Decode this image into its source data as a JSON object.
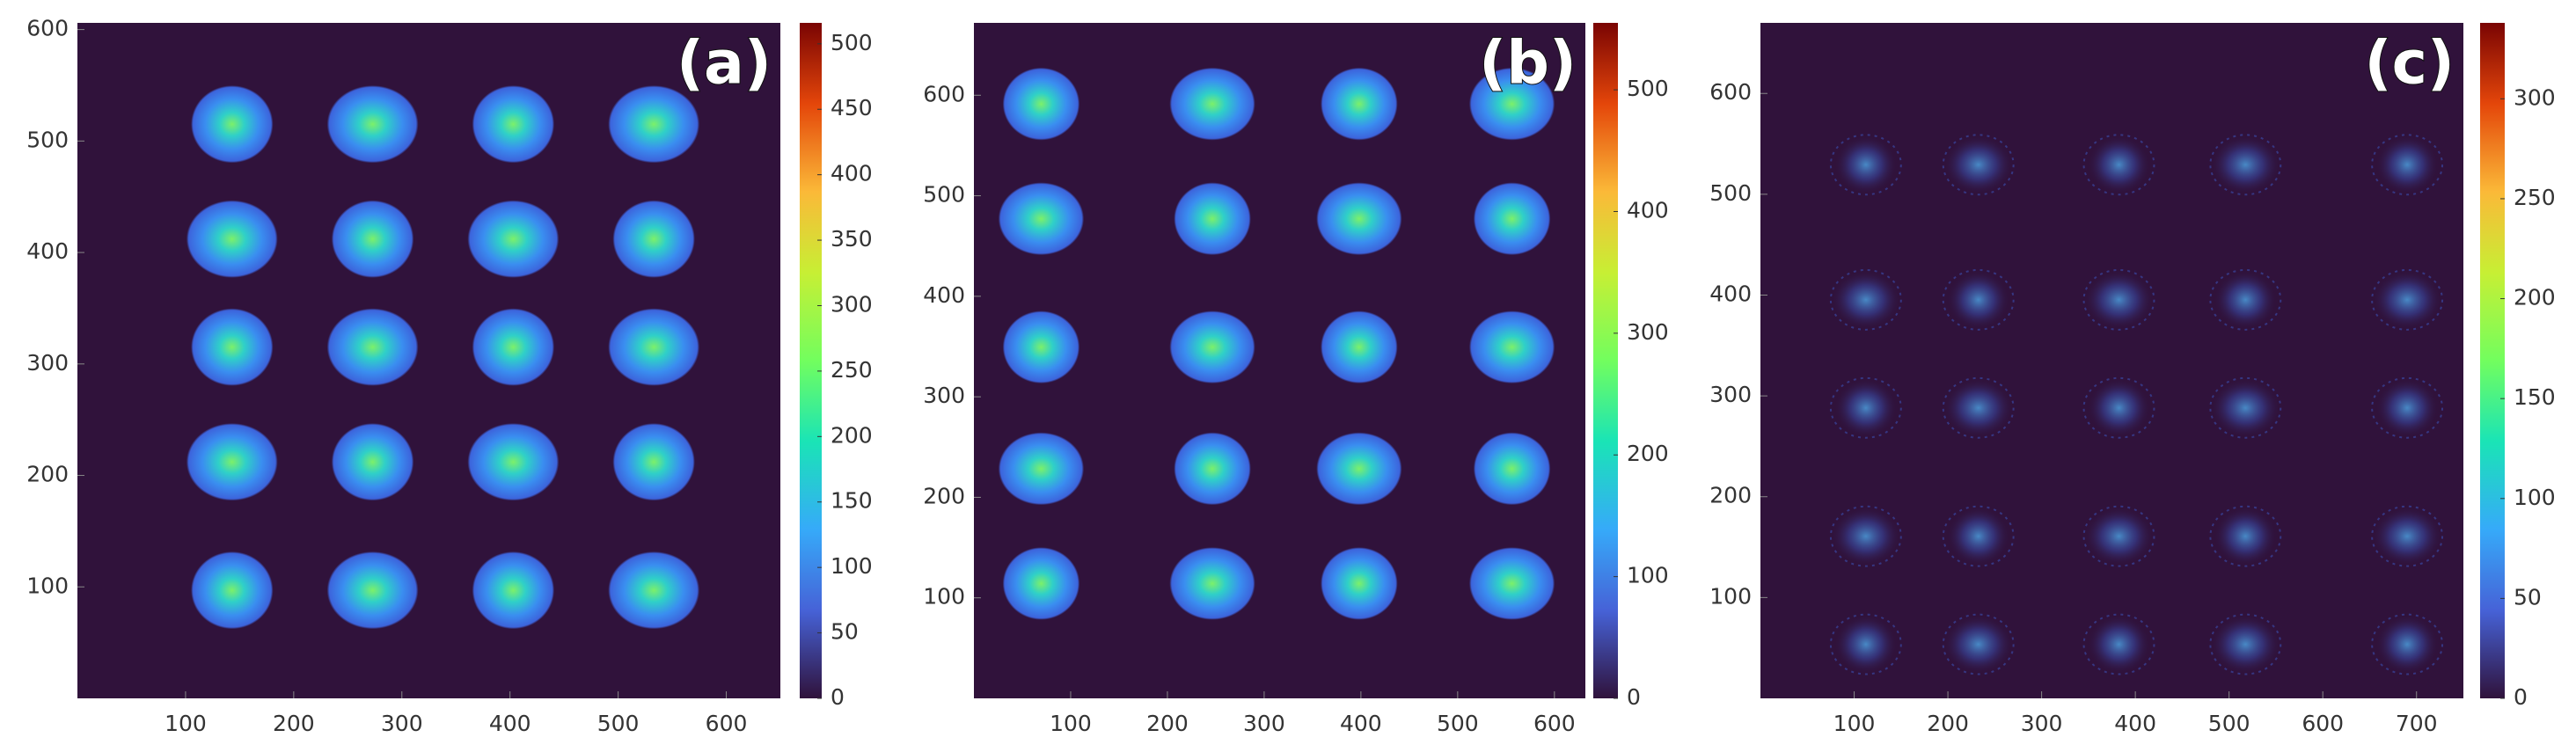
{
  "chart_data": [
    {
      "type": "heatmap",
      "label": "(a)",
      "colormap": "turbo",
      "xlim": [
        0,
        650
      ],
      "xticks": [
        100,
        200,
        300,
        400,
        500,
        600
      ],
      "ylim": [
        0,
        606
      ],
      "yticks": [
        100,
        200,
        300,
        400,
        500,
        600
      ],
      "colorbar": {
        "lim": [
          0,
          516
        ],
        "ticks": [
          0,
          50,
          100,
          150,
          200,
          250,
          300,
          350,
          400,
          450,
          500
        ]
      }
    },
    {
      "type": "heatmap",
      "label": "(b)",
      "colormap": "turbo",
      "xlim": [
        0,
        632
      ],
      "xticks": [
        100,
        200,
        300,
        400,
        500,
        600
      ],
      "ylim": [
        0,
        672
      ],
      "yticks": [
        100,
        200,
        300,
        400,
        500,
        600
      ],
      "colorbar": {
        "lim": [
          0,
          555
        ],
        "ticks": [
          0,
          100,
          200,
          300,
          400,
          500
        ]
      }
    },
    {
      "type": "heatmap",
      "label": "(c)",
      "colormap": "turbo",
      "xlim": [
        0,
        750
      ],
      "xticks": [
        100,
        200,
        300,
        400,
        500,
        600,
        700
      ],
      "ylim": [
        0,
        670
      ],
      "yticks": [
        100,
        200,
        300,
        400,
        500,
        600
      ],
      "colorbar": {
        "lim": [
          0,
          338
        ],
        "ticks": [
          0,
          50,
          100,
          150,
          200,
          250,
          300
        ]
      }
    }
  ]
}
